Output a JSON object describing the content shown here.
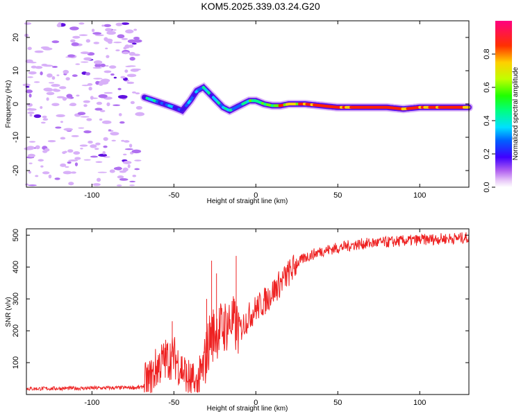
{
  "title": "KOM5.2025.339.03.24.G20",
  "chart_data": [
    {
      "type": "heatmap",
      "name": "spectrogram",
      "xlabel": "Height of straight line (km)",
      "ylabel": "Frequency (Hz)",
      "xlim": [
        -140,
        130
      ],
      "ylim": [
        -25,
        25
      ],
      "xticks": [
        -100,
        -50,
        0,
        50,
        100
      ],
      "yticks": [
        -20,
        -10,
        0,
        10,
        20
      ],
      "colorbar": {
        "label": "Normalized spectral amplitude",
        "range": [
          0,
          1
        ],
        "ticks": [
          0.0,
          0.2,
          0.4,
          0.6,
          0.8
        ],
        "tick_labels": [
          "0.0",
          "0.2",
          "0.4",
          "0.6",
          "0.8"
        ]
      },
      "signal_track": {
        "x": [
          -68,
          -62,
          -56,
          -50,
          -45,
          -40,
          -36,
          -32,
          -28,
          -24,
          -20,
          -16,
          -12,
          -8,
          -4,
          0,
          5,
          10,
          15,
          20,
          30,
          40,
          50,
          60,
          70,
          80,
          90,
          100,
          110,
          120,
          130
        ],
        "freq": [
          2,
          1,
          0,
          -1,
          -2,
          1,
          4,
          5,
          3,
          1,
          -1,
          -2,
          -1,
          0,
          1,
          1,
          0,
          -0.5,
          -0.5,
          0,
          0,
          -0.5,
          -1,
          -1,
          -1,
          -1,
          -1.5,
          -1,
          -1,
          -1,
          -1
        ],
        "amplitude": [
          0.3,
          0.3,
          0.25,
          0.2,
          0.2,
          0.25,
          0.3,
          0.35,
          0.3,
          0.35,
          0.4,
          0.35,
          0.3,
          0.4,
          0.5,
          0.5,
          0.6,
          0.6,
          0.7,
          0.7,
          0.8,
          0.85,
          0.9,
          0.85,
          0.9,
          0.95,
          0.9,
          0.85,
          0.9,
          0.9,
          0.85
        ]
      },
      "noise_region_x": [
        -140,
        -70
      ]
    },
    {
      "type": "line",
      "name": "snr",
      "xlabel": "Height of straight line (km)",
      "ylabel": "SNR (v/v)",
      "xlim": [
        -140,
        130
      ],
      "ylim": [
        0,
        520
      ],
      "xticks": [
        -100,
        -50,
        0,
        50,
        100
      ],
      "yticks": [
        100,
        200,
        300,
        400,
        500
      ],
      "color": "#ee2222",
      "trend": {
        "x": [
          -140,
          -100,
          -70,
          -65,
          -60,
          -55,
          -50,
          -45,
          -40,
          -36,
          -32,
          -28,
          -24,
          -20,
          -15,
          -10,
          -5,
          0,
          5,
          10,
          15,
          20,
          25,
          30,
          40,
          50,
          60,
          70,
          80,
          90,
          100,
          110,
          120,
          130
        ],
        "y": [
          18,
          20,
          22,
          40,
          90,
          110,
          120,
          80,
          40,
          20,
          80,
          180,
          200,
          210,
          230,
          200,
          240,
          270,
          290,
          320,
          350,
          380,
          410,
          430,
          450,
          460,
          470,
          475,
          478,
          482,
          485,
          488,
          490,
          492
        ]
      },
      "spikes": [
        {
          "x": -51,
          "y": 230
        },
        {
          "x": -30,
          "y": 300
        },
        {
          "x": -27,
          "y": 420
        },
        {
          "x": -24,
          "y": 380
        },
        {
          "x": -12,
          "y": 435
        }
      ]
    }
  ]
}
